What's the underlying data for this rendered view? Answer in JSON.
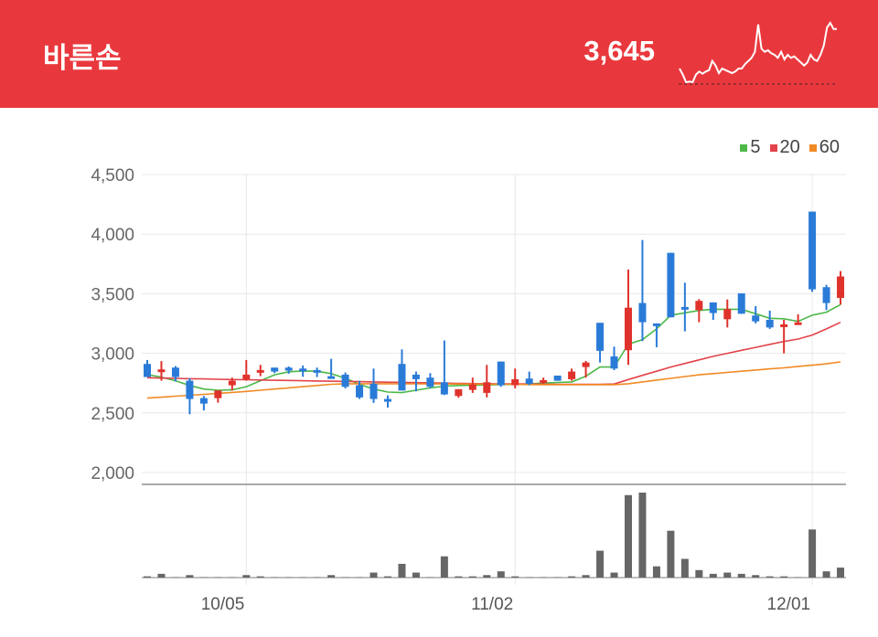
{
  "header": {
    "title": "바른손",
    "price": "3,645",
    "background": "#e9383d",
    "sparkline": [
      90,
      70,
      45,
      47,
      45,
      70,
      80,
      73,
      80,
      85,
      115,
      100,
      75,
      90,
      85,
      80,
      75,
      80,
      90,
      90,
      105,
      115,
      125,
      145,
      235,
      155,
      145,
      150,
      140,
      135,
      125,
      145,
      120,
      135,
      125,
      130,
      120,
      110,
      100,
      110,
      135,
      120,
      115,
      135,
      165,
      225,
      240,
      220,
      220
    ]
  },
  "legend": [
    {
      "label": "5",
      "color": "#4cb848"
    },
    {
      "label": "20",
      "color": "#e2434a"
    },
    {
      "label": "60",
      "color": "#f08a24"
    }
  ],
  "chart_data": {
    "type": "candlestick",
    "ylim": [
      2000,
      4500
    ],
    "yticks": [
      "4,500",
      "4,000",
      "3,500",
      "3,000",
      "2,500",
      "2,000"
    ],
    "ytick_values": [
      4500,
      4000,
      3500,
      3000,
      2500,
      2000
    ],
    "xticks": [
      {
        "index": 7,
        "label": "10/05"
      },
      {
        "index": 26,
        "label": "11/02"
      },
      {
        "index": 47,
        "label": "12/01"
      }
    ],
    "grid": true,
    "legend_position": "top-right",
    "up_color": "#e0322c",
    "down_color": "#2a7bd8",
    "volume_color": "#666666",
    "candles": [
      [
        2911,
        2944,
        2801,
        2801
      ],
      [
        2855,
        2935,
        2770,
        2865
      ],
      [
        2880,
        2893,
        2763,
        2801
      ],
      [
        2770,
        2791,
        2489,
        2617
      ],
      [
        2624,
        2642,
        2520,
        2578
      ],
      [
        2624,
        2688,
        2586,
        2688
      ],
      [
        2732,
        2796,
        2688,
        2770
      ],
      [
        2783,
        2944,
        2770,
        2821
      ],
      [
        2842,
        2903,
        2808,
        2860
      ],
      [
        2880,
        2880,
        2834,
        2847
      ],
      [
        2880,
        2890,
        2829,
        2855
      ],
      [
        2872,
        2898,
        2803,
        2852
      ],
      [
        2860,
        2880,
        2801,
        2847
      ],
      [
        2808,
        2954,
        2791,
        2791
      ],
      [
        2821,
        2839,
        2706,
        2719
      ],
      [
        2732,
        2770,
        2617,
        2630
      ],
      [
        2745,
        2872,
        2584,
        2617
      ],
      [
        2617,
        2647,
        2545,
        2612
      ],
      [
        2911,
        3033,
        2688,
        2688
      ],
      [
        2821,
        2847,
        2681,
        2783
      ],
      [
        2796,
        2834,
        2706,
        2719
      ],
      [
        2757,
        3108,
        2650,
        2655
      ],
      [
        2642,
        2699,
        2627,
        2699
      ],
      [
        2693,
        2796,
        2668,
        2739
      ],
      [
        2668,
        2903,
        2630,
        2757
      ],
      [
        2931,
        2931,
        2719,
        2732
      ],
      [
        2732,
        2872,
        2706,
        2783
      ],
      [
        2788,
        2847,
        2732,
        2744
      ],
      [
        2763,
        2796,
        2744,
        2775
      ],
      [
        2813,
        2813,
        2770,
        2770
      ],
      [
        2783,
        2872,
        2770,
        2847
      ],
      [
        2885,
        2936,
        2796,
        2923
      ],
      [
        3256,
        3256,
        2923,
        3021
      ],
      [
        2974,
        3056,
        2859,
        2872
      ],
      [
        3026,
        3703,
        2903,
        3383
      ],
      [
        3422,
        3951,
        3102,
        3261
      ],
      [
        3251,
        3251,
        3051,
        3230
      ],
      [
        3843,
        3843,
        3302,
        3302
      ],
      [
        3389,
        3593,
        3184,
        3371
      ],
      [
        3363,
        3455,
        3261,
        3440
      ],
      [
        3427,
        3427,
        3281,
        3338
      ],
      [
        3286,
        3452,
        3217,
        3371
      ],
      [
        3503,
        3503,
        3332,
        3332
      ],
      [
        3317,
        3396,
        3251,
        3268
      ],
      [
        3281,
        3358,
        3205,
        3217
      ],
      [
        3225,
        3281,
        3000,
        3243
      ],
      [
        3250,
        3327,
        3243,
        3260
      ],
      [
        4189,
        4189,
        3516,
        3537
      ],
      [
        3555,
        3575,
        3363,
        3422
      ],
      [
        3465,
        3690,
        3409,
        3645
      ]
    ],
    "candle_fields": [
      "open",
      "high",
      "low",
      "close"
    ],
    "volume_relative": [
      4,
      12,
      1,
      8,
      1,
      1,
      1,
      8,
      4,
      1,
      1,
      1,
      1,
      8,
      1,
      1,
      16,
      4,
      44,
      16,
      1,
      68,
      4,
      4,
      8,
      20,
      4,
      1,
      1,
      1,
      4,
      8,
      86,
      16,
      264,
      272,
      36,
      150,
      60,
      24,
      12,
      16,
      12,
      8,
      4,
      4,
      1,
      154,
      20,
      32
    ],
    "series": [
      {
        "name": "5",
        "values": [
          2821,
          2800,
          2770,
          2730,
          2700,
          2690,
          2693,
          2720,
          2770,
          2820,
          2845,
          2852,
          2850,
          2830,
          2790,
          2740,
          2700,
          2675,
          2670,
          2690,
          2710,
          2725,
          2730,
          2732,
          2735,
          2738,
          2740,
          2744,
          2750,
          2755,
          2760,
          2808,
          2885,
          2885,
          3077,
          3115,
          3205,
          3320,
          3340,
          3360,
          3370,
          3370,
          3370,
          3332,
          3294,
          3290,
          3268,
          3320,
          3345,
          3409
        ]
      },
      {
        "name": "20",
        "values": [
          2795,
          2792,
          2790,
          2787,
          2785,
          2782,
          2780,
          2778,
          2776,
          2774,
          2772,
          2770,
          2768,
          2766,
          2764,
          2762,
          2760,
          2758,
          2756,
          2754,
          2752,
          2750,
          2748,
          2746,
          2745,
          2744,
          2743,
          2742,
          2741,
          2740,
          2740,
          2740,
          2740,
          2742,
          2780,
          2815,
          2850,
          2885,
          2915,
          2945,
          2975,
          3000,
          3025,
          3050,
          3075,
          3100,
          3120,
          3153,
          3205,
          3260
        ]
      },
      {
        "name": "60",
        "values": [
          2624,
          2632,
          2640,
          2648,
          2656,
          2664,
          2672,
          2680,
          2690,
          2700,
          2710,
          2720,
          2730,
          2740,
          2745,
          2745,
          2745,
          2745,
          2744,
          2744,
          2743,
          2743,
          2742,
          2742,
          2741,
          2740,
          2740,
          2738,
          2737,
          2737,
          2737,
          2737,
          2737,
          2737,
          2745,
          2760,
          2775,
          2790,
          2805,
          2820,
          2830,
          2840,
          2850,
          2860,
          2870,
          2878,
          2890,
          2900,
          2912,
          2928
        ]
      }
    ]
  }
}
